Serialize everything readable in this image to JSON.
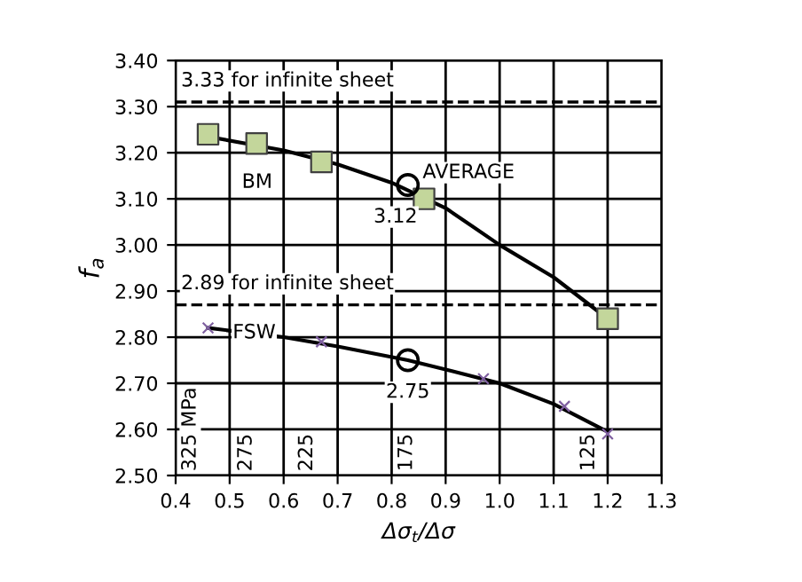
{
  "chart_data": {
    "type": "scatter",
    "xlabel": "Δσ$_{t}$/Δσ",
    "ylabel": "f$_{a}$",
    "xlim": [
      0.4,
      1.3
    ],
    "ylim": [
      2.5,
      3.4
    ],
    "xticks": [
      {
        "value": 0.4,
        "label": "0.4"
      },
      {
        "value": 0.5,
        "label": "0.5"
      },
      {
        "value": 0.6,
        "label": "0.6"
      },
      {
        "value": 0.7,
        "label": "0.7"
      },
      {
        "value": 0.8,
        "label": "0.8"
      },
      {
        "value": 0.9,
        "label": "0.9"
      },
      {
        "value": 1.0,
        "label": "1.0"
      },
      {
        "value": 1.1,
        "label": "1.1"
      },
      {
        "value": 1.2,
        "label": "1.2"
      },
      {
        "value": 1.3,
        "label": "1.3"
      }
    ],
    "yticks": [
      {
        "value": 2.5,
        "label": "2.50"
      },
      {
        "value": 2.6,
        "label": "2.60"
      },
      {
        "value": 2.7,
        "label": "2.70"
      },
      {
        "value": 2.8,
        "label": "2.80"
      },
      {
        "value": 2.9,
        "label": "2.90"
      },
      {
        "value": 3.0,
        "label": "3.00"
      },
      {
        "value": 3.1,
        "label": "3.10"
      },
      {
        "value": 3.2,
        "label": "3.20"
      },
      {
        "value": 3.3,
        "label": "3.30"
      },
      {
        "value": 3.4,
        "label": "3.40"
      }
    ],
    "grid": true,
    "series": [
      {
        "type": "line",
        "color": "#000000",
        "marker": "none",
        "line_style": "solid",
        "x": [
          0.46,
          0.6,
          0.7,
          0.8,
          0.9,
          1.0,
          1.1,
          1.2
        ],
        "values": [
          3.235,
          3.205,
          3.175,
          3.135,
          3.08,
          3.0,
          2.93,
          2.84
        ]
      },
      {
        "type": "line",
        "color": "#000000",
        "marker": "none",
        "line_style": "solid",
        "x": [
          0.46,
          0.6,
          0.7,
          0.83,
          0.9,
          1.0,
          1.1,
          1.2
        ],
        "values": [
          2.82,
          2.8,
          2.78,
          2.75,
          2.73,
          2.7,
          2.655,
          2.595
        ]
      },
      {
        "type": "scatter",
        "color": "#c3d69b",
        "marker": "square",
        "x": [
          0.46,
          0.55,
          0.67,
          0.86,
          1.2
        ],
        "values": [
          3.24,
          3.22,
          3.18,
          3.1,
          2.84
        ]
      },
      {
        "type": "scatter",
        "color": "#7f60a0",
        "marker": "cross",
        "x": [
          0.46,
          0.67,
          0.97,
          1.12,
          1.2
        ],
        "values": [
          2.82,
          2.79,
          2.71,
          2.65,
          2.59
        ]
      },
      {
        "type": "scatter",
        "color": "#000000",
        "marker": "circle",
        "x": [
          0.83,
          0.83
        ],
        "values": [
          3.13,
          2.75
        ]
      }
    ],
    "ref_lines": [
      {
        "axis": "y",
        "value": 3.31,
        "label": "3.33 for infinite sheet",
        "line_style": "dashed",
        "color": "#000000"
      },
      {
        "axis": "y",
        "value": 2.87,
        "label": "2.89 for infinite sheet",
        "line_style": "dashed",
        "color": "#000000"
      }
    ],
    "annotations": [
      {
        "text": "BM",
        "x": 0.55,
        "y": 3.2
      },
      {
        "text": "AVERAGE",
        "x": 0.83,
        "y": 3.13
      },
      {
        "text": "3.12",
        "x": 0.83,
        "y": 3.13
      },
      {
        "text": "FSW",
        "x": 0.46,
        "y": 2.82
      },
      {
        "text": "2.75",
        "x": 0.83,
        "y": 2.75
      },
      "325 MPa",
      "275",
      "225",
      "175",
      "125"
    ]
  }
}
